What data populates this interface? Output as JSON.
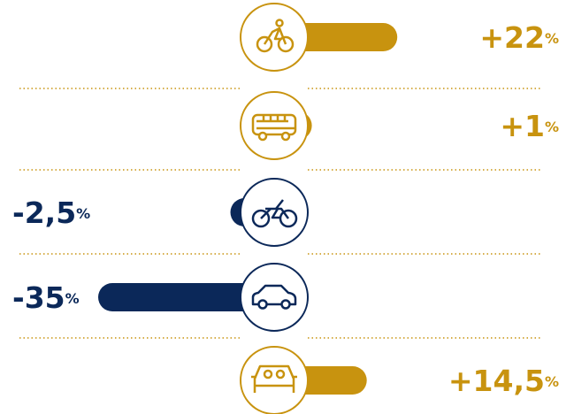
{
  "chart_data": {
    "type": "bar",
    "orientation": "horizontal",
    "categories": [
      null,
      null,
      null,
      null,
      null
    ],
    "values": [
      22,
      1,
      -2.5,
      -35,
      14.5
    ],
    "value_labels": [
      "+22%",
      "+1%",
      "-2,5%",
      "-35%",
      "+14,5%"
    ],
    "positive_color": "#c8930f",
    "negative_color": "#0b2859"
  }
}
